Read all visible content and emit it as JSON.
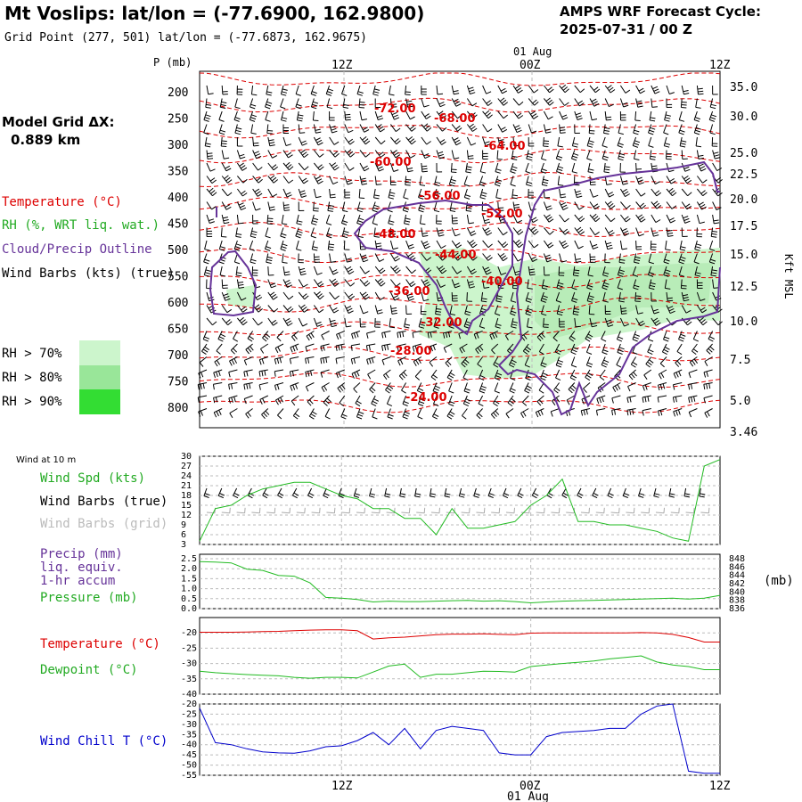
{
  "header": {
    "title": "Mt Voslips:  lat/lon = (-77.6900, 162.9800)",
    "grid_point": "Grid Point (277, 501) lat/lon = (-77.6873, 162.9675)",
    "cycle_label": "AMPS WRF Forecast Cycle:",
    "cycle_value": "2025-07-31 / 00  Z"
  },
  "model_grid": {
    "label": "Model Grid ΔX:",
    "value": "0.889 km"
  },
  "legend": {
    "temperature": "Temperature (°C)",
    "rh": "RH (%, WRT liq. wat.)",
    "cloud": "Cloud/Precip Outline",
    "wind": "Wind Barbs (kts) (true)",
    "rh_levels": [
      {
        "label": "RH > 70%",
        "color": "#ccf5cc"
      },
      {
        "label": "RH > 80%",
        "color": "#99e699"
      },
      {
        "label": "RH > 90%",
        "color": "#33dd33"
      }
    ]
  },
  "time_axis": {
    "date_label": "01 Aug",
    "ticks": [
      "12Z",
      "00Z",
      "12Z"
    ],
    "tick_hours": [
      12,
      24,
      36
    ],
    "range_hours": [
      3,
      36
    ]
  },
  "colors": {
    "temperature": "#dd0000",
    "cloud_outline": "#663399",
    "green": "#22bb22",
    "blue": "#0000cc",
    "grid": "#bbbbbb"
  },
  "chart_data": [
    {
      "type": "contour",
      "name": "cross-section",
      "ylabel": "P (mb)",
      "yright_label": "Kft MSL",
      "pressure_ticks": [
        "200",
        "250",
        "300",
        "350",
        "400",
        "450",
        "500",
        "550",
        "600",
        "650",
        "700",
        "750",
        "800"
      ],
      "height_ticks": [
        "35.0",
        "30.0",
        "25.0",
        "22.5",
        "20.0",
        "17.5",
        "15.0",
        "12.5",
        "10.0",
        "7.5",
        "5.0",
        "3.46"
      ],
      "temperature_labels": [
        "-72.00",
        "-68.00",
        "-64.00",
        "-60.00",
        "-56.00",
        "-52.00",
        "-48.00",
        "-44.00",
        "-40.00",
        "-36.00",
        "-32.00",
        "-28.00",
        "-24.00"
      ]
    },
    {
      "type": "line",
      "name": "wind-10m",
      "panel_title": "Wind at 10 m",
      "labels": [
        "Wind Spd (kts)",
        "Wind Barbs (true)",
        "Wind Barbs (grid)"
      ],
      "yticks": [
        "30",
        "27",
        "24",
        "21",
        "18",
        "15",
        "12",
        "9",
        "6",
        "3"
      ],
      "ylim": [
        3,
        30
      ],
      "x": [
        3,
        4,
        5,
        6,
        7,
        8,
        9,
        10,
        11,
        12,
        13,
        14,
        15,
        16,
        17,
        18,
        19,
        20,
        21,
        22,
        23,
        24,
        25,
        26,
        27,
        28,
        29,
        30,
        31,
        32,
        33,
        34,
        35,
        36
      ],
      "series": [
        {
          "name": "Wind Spd (kts)",
          "values": [
            4,
            14,
            15,
            18,
            20,
            21,
            22,
            22,
            20,
            18,
            17,
            14,
            14,
            11,
            11,
            6,
            14,
            8,
            8,
            9,
            10,
            15,
            18,
            23,
            10,
            10,
            9,
            9,
            8,
            7,
            5,
            4,
            27,
            29
          ]
        }
      ]
    },
    {
      "type": "line",
      "name": "precip-pressure",
      "labels": [
        "Precip (mm)",
        "liq. equiv.",
        "1-hr accum",
        "Pressure (mb)"
      ],
      "yticks_left": [
        "2.5",
        "2.0",
        "1.5",
        "1.0",
        "0.5",
        "0.0"
      ],
      "yticks_right": [
        "848",
        "846",
        "844",
        "842",
        "840",
        "838",
        "836"
      ],
      "unit_right": "(mb)",
      "ylim_left": [
        0,
        2.5
      ],
      "ylim_right": [
        836,
        848
      ],
      "x": [
        3,
        4,
        5,
        6,
        7,
        8,
        9,
        10,
        11,
        12,
        13,
        14,
        15,
        16,
        17,
        18,
        19,
        20,
        21,
        22,
        23,
        24,
        25,
        26,
        27,
        28,
        29,
        30,
        31,
        32,
        33,
        34,
        35,
        36
      ],
      "series": [
        {
          "name": "Pressure (mb)",
          "values": [
            847.3,
            847.2,
            847.0,
            845.5,
            845.2,
            844.0,
            843.8,
            842.2,
            838.7,
            838.5,
            838.2,
            837.6,
            837.8,
            837.7,
            837.7,
            837.8,
            837.9,
            838.0,
            837.8,
            837.9,
            837.7,
            837.4,
            837.6,
            837.8,
            837.9,
            838.0,
            838.1,
            838.2,
            838.3,
            838.4,
            838.5,
            838.3,
            838.5,
            839.2
          ]
        }
      ]
    },
    {
      "type": "line",
      "name": "temperature-dewpoint",
      "labels": [
        "Temperature (°C)",
        "Dewpoint (°C)"
      ],
      "yticks": [
        "-20",
        "-25",
        "-30",
        "-35",
        "-40"
      ],
      "ylim": [
        -40,
        -15
      ],
      "x": [
        3,
        4,
        5,
        6,
        7,
        8,
        9,
        10,
        11,
        12,
        13,
        14,
        15,
        16,
        17,
        18,
        19,
        20,
        21,
        22,
        23,
        24,
        25,
        26,
        27,
        28,
        29,
        30,
        31,
        32,
        33,
        34,
        35,
        36
      ],
      "series": [
        {
          "name": "Temperature (°C)",
          "values": [
            -19.8,
            -19.8,
            -19.8,
            -19.7,
            -19.6,
            -19.5,
            -19.3,
            -19.1,
            -19.0,
            -19.0,
            -19.3,
            -22.0,
            -21.6,
            -21.4,
            -21.0,
            -20.6,
            -20.4,
            -20.4,
            -20.3,
            -20.5,
            -20.6,
            -20.1,
            -20.0,
            -20.0,
            -20.0,
            -20.0,
            -20.0,
            -20.0,
            -19.9,
            -20.0,
            -20.5,
            -21.5,
            -23.0,
            -23.0
          ]
        },
        {
          "name": "Dewpoint (°C)",
          "values": [
            -32.5,
            -33.0,
            -33.3,
            -33.6,
            -33.8,
            -34.0,
            -34.5,
            -34.8,
            -34.5,
            -34.5,
            -34.7,
            -32.8,
            -30.8,
            -30.2,
            -34.5,
            -33.5,
            -33.5,
            -33.0,
            -32.5,
            -32.6,
            -32.8,
            -31.0,
            -30.5,
            -30.0,
            -29.6,
            -29.2,
            -28.5,
            -28.0,
            -27.5,
            -29.5,
            -30.5,
            -31.0,
            -32.0,
            -32.0
          ]
        }
      ]
    },
    {
      "type": "line",
      "name": "wind-chill",
      "labels": [
        "Wind Chill T (°C)"
      ],
      "yticks": [
        "-20",
        "-25",
        "-30",
        "-35",
        "-40",
        "-45",
        "-50",
        "-55"
      ],
      "ylim": [
        -55,
        -20
      ],
      "x": [
        3,
        4,
        5,
        6,
        7,
        8,
        9,
        10,
        11,
        12,
        13,
        14,
        15,
        16,
        17,
        18,
        19,
        20,
        21,
        22,
        23,
        24,
        25,
        26,
        27,
        28,
        29,
        30,
        31,
        32,
        33,
        34,
        35,
        36
      ],
      "series": [
        {
          "name": "Wind Chill T (°C)",
          "values": [
            -22,
            -39,
            -40,
            -42,
            -43.5,
            -44,
            -44.2,
            -43,
            -41,
            -40.5,
            -38,
            -34,
            -40,
            -32,
            -42,
            -33,
            -31,
            -32,
            -33,
            -44,
            -45,
            -45,
            -36,
            -34,
            -33.5,
            -33,
            -32,
            -32,
            -25,
            -21,
            -20,
            -53,
            -54,
            -54
          ]
        }
      ]
    }
  ],
  "bottom_axis": {
    "ticks": [
      "12Z",
      "00Z",
      "12Z"
    ],
    "date_label": "01 Aug"
  }
}
